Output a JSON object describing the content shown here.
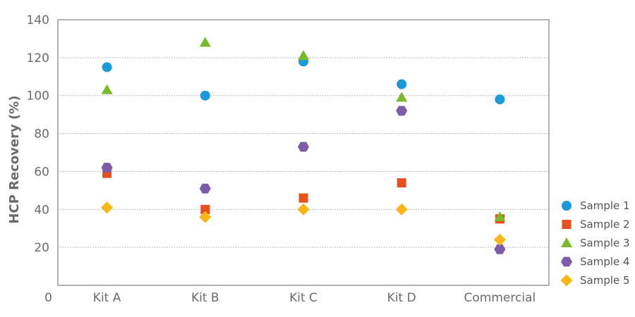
{
  "chart_data": {
    "type": "scatter",
    "title": "",
    "xlabel": "",
    "ylabel": "HCP Recovery (%)",
    "ylim": [
      0,
      140
    ],
    "yticks": [
      20,
      40,
      60,
      80,
      100,
      120,
      140
    ],
    "y_zero_label": "0",
    "categories": [
      "Kit A",
      "Kit B",
      "Kit C",
      "Kit D",
      "Commercial"
    ],
    "grid": true,
    "legend_position": "right",
    "series": [
      {
        "name": "Sample 1",
        "marker": "circle",
        "color": "#1a9ad6",
        "values": [
          115,
          100,
          118,
          106,
          98
        ]
      },
      {
        "name": "Sample 2",
        "marker": "square",
        "color": "#e8501e",
        "values": [
          59,
          40,
          46,
          54,
          35
        ]
      },
      {
        "name": "Sample 3",
        "marker": "triangle",
        "color": "#7ab929",
        "values": [
          103,
          128,
          121,
          99,
          36
        ]
      },
      {
        "name": "Sample 4",
        "marker": "hexagon",
        "color": "#7d5ba6",
        "values": [
          62,
          51,
          73,
          92,
          19
        ]
      },
      {
        "name": "Sample 5",
        "marker": "diamond",
        "color": "#fbb515",
        "values": [
          41,
          36,
          40,
          40,
          24
        ]
      }
    ]
  }
}
